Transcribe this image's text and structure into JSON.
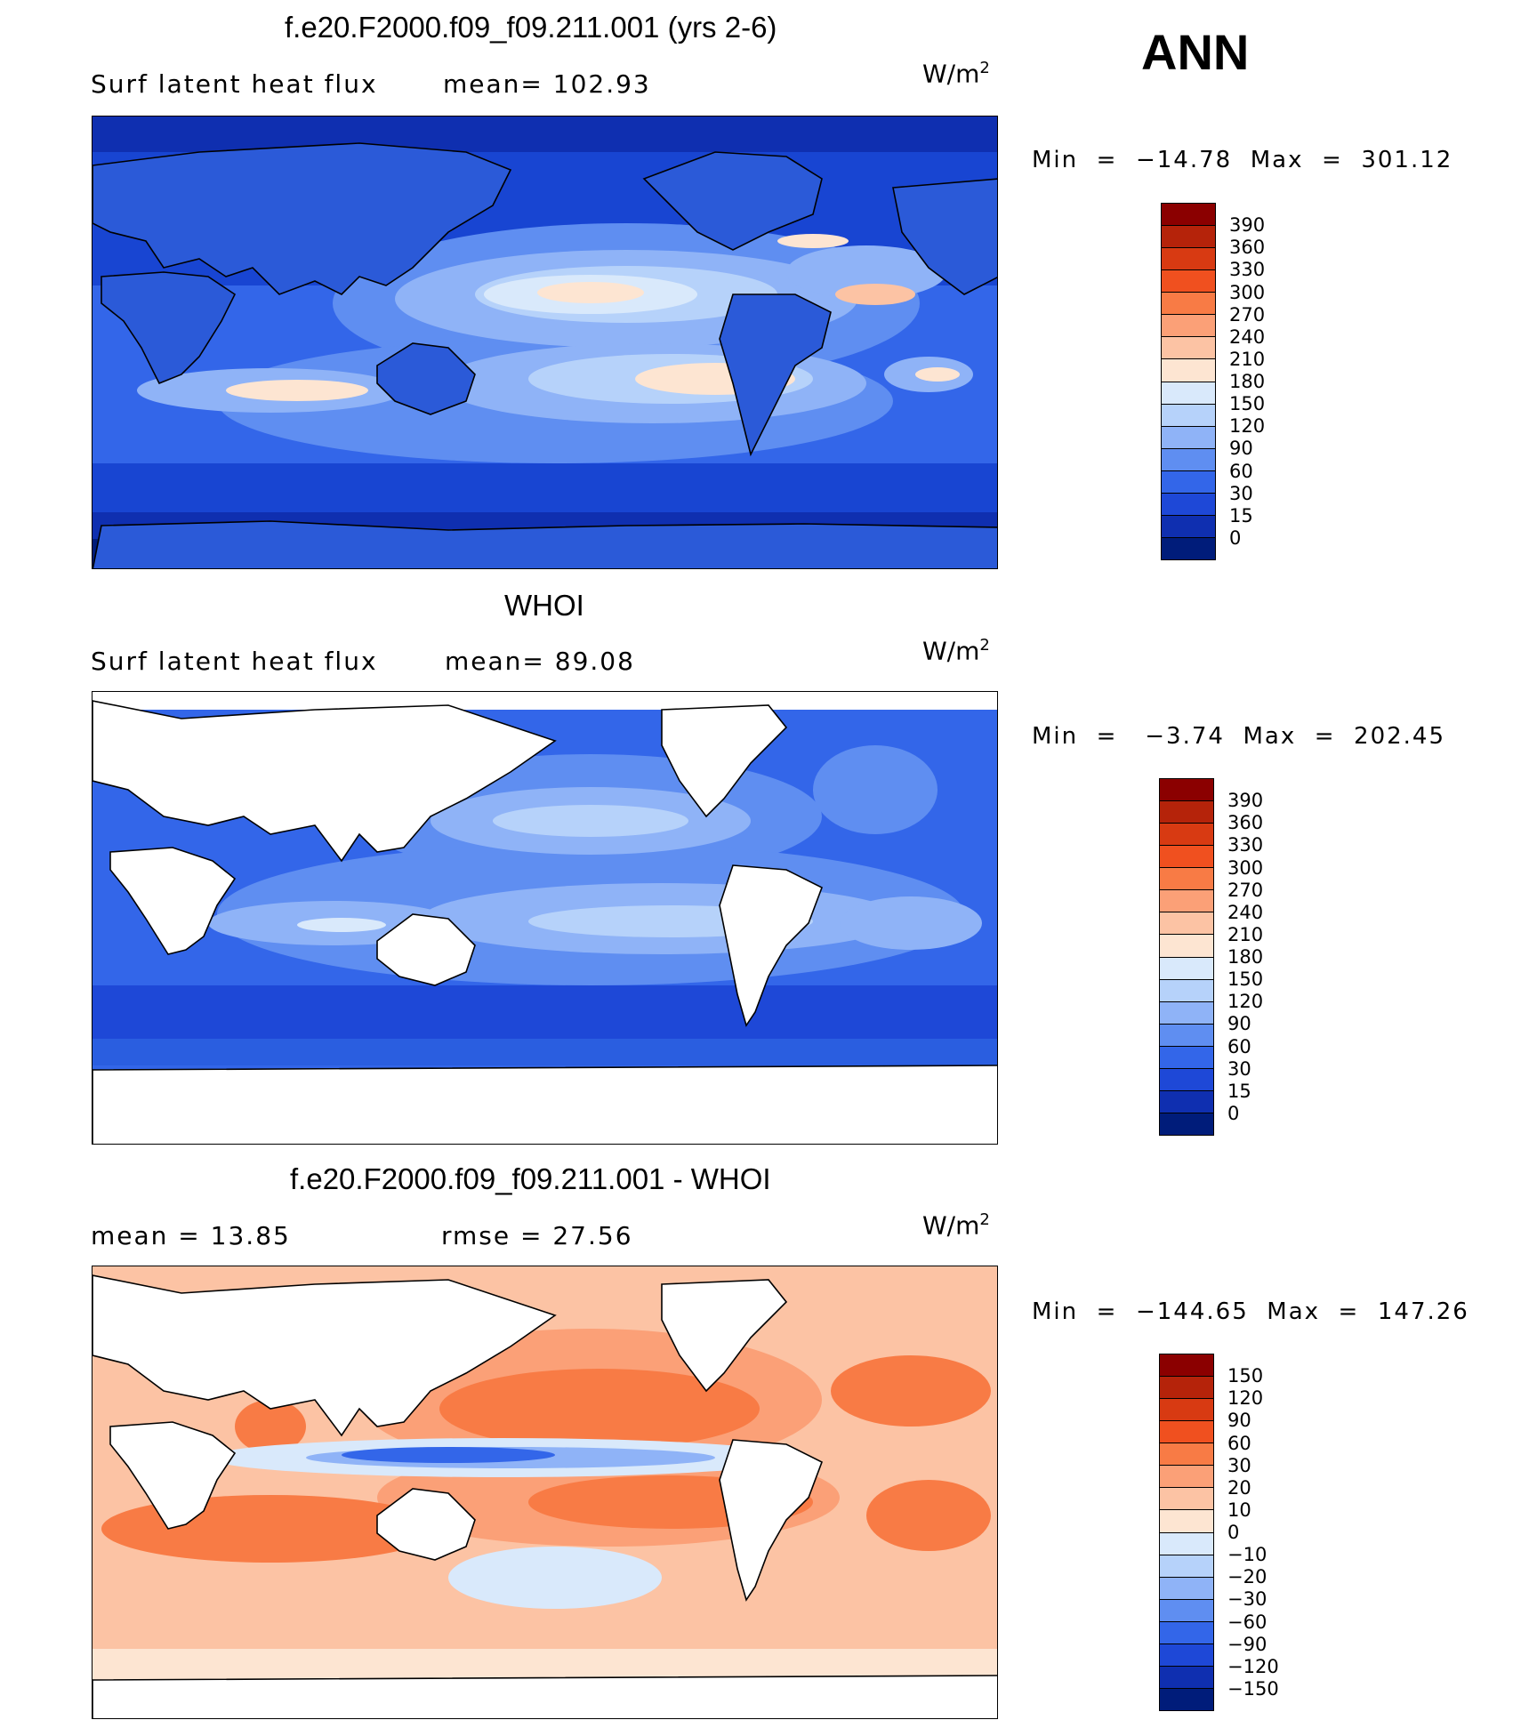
{
  "season": "ANN",
  "panels": [
    {
      "title": "f.e20.F2000.f09_f09.211.001 (yrs 2-6)",
      "left_label": "Surf  latent  heat  flux",
      "mid_label": "mean=  102.93",
      "units_base": "W/m",
      "units_exp": "2",
      "minmax": "Min  =  −14.78  Max  =  301.12",
      "colorbar_ticks": [
        "390",
        "360",
        "330",
        "300",
        "270",
        "240",
        "210",
        "180",
        "150",
        "120",
        "90",
        "60",
        "30",
        "15",
        "0"
      ],
      "colorbar_colors": [
        "#8b0000",
        "#b5230a",
        "#d83a12",
        "#f0501f",
        "#f87b45",
        "#fba077",
        "#fcc3a4",
        "#fde5d2",
        "#d9e9fb",
        "#b6d2fa",
        "#8fb3f7",
        "#5f8ef1",
        "#3366e9",
        "#1e48d7",
        "#0f2fb0",
        "#001c7a"
      ],
      "map_base": "#1845d2",
      "map_land": "#2b5ad8",
      "colorbar_id": "top"
    },
    {
      "title": "WHOI",
      "left_label": "Surf  latent  heat  flux",
      "mid_label": "mean=  89.08",
      "units_base": "W/m",
      "units_exp": "2",
      "minmax": "Min  =   −3.74  Max  =  202.45",
      "colorbar_ticks": [
        "390",
        "360",
        "330",
        "300",
        "270",
        "240",
        "210",
        "180",
        "150",
        "120",
        "90",
        "60",
        "30",
        "15",
        "0"
      ],
      "colorbar_colors": [
        "#8b0000",
        "#b5230a",
        "#d83a12",
        "#f0501f",
        "#f87b45",
        "#fba077",
        "#fcc3a4",
        "#fde5d2",
        "#d9e9fb",
        "#b6d2fa",
        "#8fb3f7",
        "#5f8ef1",
        "#3366e9",
        "#1e48d7",
        "#0f2fb0",
        "#001c7a"
      ],
      "map_base": "#2a5ee0",
      "map_land": "#ffffff",
      "colorbar_id": "mid"
    },
    {
      "title": "f.e20.F2000.f09_f09.211.001 - WHOI",
      "left_label": "mean  =    13.85",
      "mid_label": "rmse  =    27.56",
      "units_base": "W/m",
      "units_exp": "2",
      "minmax": "Min  =  −144.65  Max  =  147.26",
      "colorbar_ticks": [
        "150",
        "120",
        "90",
        "60",
        "30",
        "20",
        "10",
        "0",
        "−10",
        "−20",
        "−30",
        "−60",
        "−90",
        "−120",
        "−150"
      ],
      "colorbar_colors": [
        "#8b0000",
        "#b5230a",
        "#d83a12",
        "#f0501f",
        "#f87b45",
        "#fba077",
        "#fcc3a4",
        "#fde5d2",
        "#d9e9fb",
        "#b6d2fa",
        "#8fb3f7",
        "#5f8ef1",
        "#3366e9",
        "#1e48d7",
        "#0f2fb0",
        "#001c7a"
      ],
      "map_base": "#f9c9ad",
      "map_land": "#ffffff",
      "colorbar_id": "bot"
    }
  ]
}
